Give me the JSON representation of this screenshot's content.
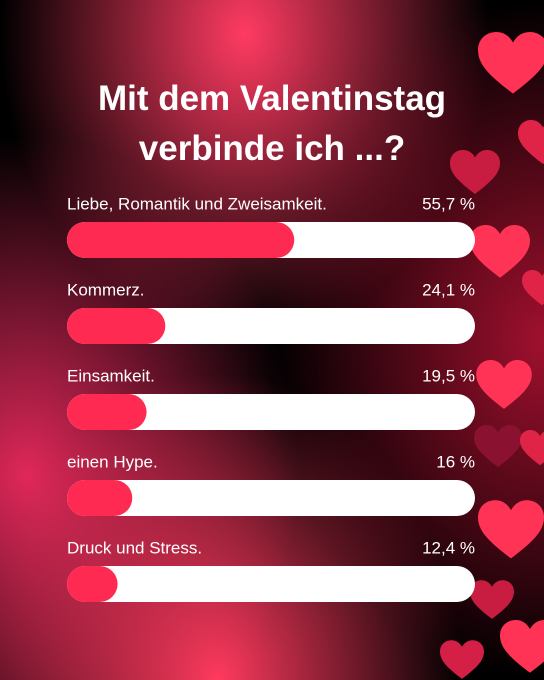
{
  "chart_data": {
    "type": "bar",
    "orientation": "horizontal",
    "title": "Mit dem Valentinstag verbinde ich ...?",
    "categories": [
      "Liebe, Romantik und Zweisamkeit.",
      "Kommerz.",
      "Einsamkeit.",
      "einen Hype.",
      "Druck und Stress."
    ],
    "values": [
      55.7,
      24.1,
      19.5,
      16,
      12.4
    ],
    "value_labels": [
      "55,7 %",
      "24,1 %",
      "19,5 %",
      "16 %",
      "12,4 %"
    ],
    "xlim": [
      0,
      100
    ],
    "color": "#ff2a52",
    "track_color": "#ffffff"
  }
}
